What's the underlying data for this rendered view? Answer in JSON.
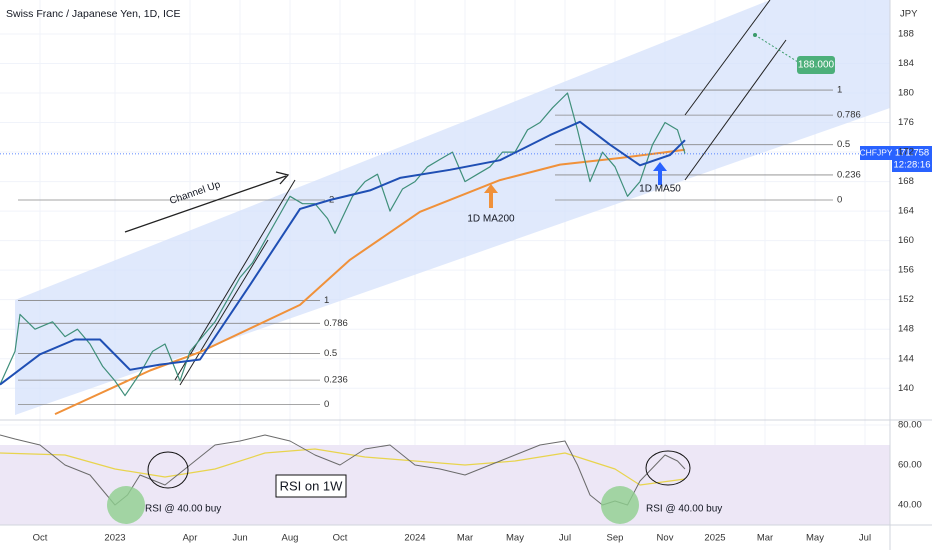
{
  "chart_data": {
    "type": "line",
    "title": "Swiss Franc / Japanese Yen, 1D, ICE",
    "currency": "JPY",
    "ticker": "CHFJPY",
    "last_price": 171.758,
    "countdown": "12:28:16",
    "xlim": [
      -0.6,
      35
    ],
    "xticks": [
      {
        "value": 1,
        "label": "Oct"
      },
      {
        "value": 4,
        "label": "2023"
      },
      {
        "value": 7,
        "label": "Apr"
      },
      {
        "value": 9,
        "label": "Jun"
      },
      {
        "value": 11,
        "label": "Aug"
      },
      {
        "value": 13,
        "label": "Oct"
      },
      {
        "value": 16,
        "label": "2024"
      },
      {
        "value": 18,
        "label": "Mar"
      },
      {
        "value": 20,
        "label": "May"
      },
      {
        "value": 22,
        "label": "Jul"
      },
      {
        "value": 24,
        "label": "Sep"
      },
      {
        "value": 26,
        "label": "Nov"
      },
      {
        "value": 28,
        "label": "2025"
      },
      {
        "value": 30,
        "label": "Mar"
      },
      {
        "value": 32,
        "label": "May"
      },
      {
        "value": 34,
        "label": "Jul"
      }
    ],
    "ylim": [
      135.7,
      192.6
    ],
    "yticks": [
      140,
      144,
      148,
      152,
      156,
      160,
      164,
      168,
      172,
      176,
      180,
      184,
      188
    ],
    "grid": true,
    "series": [
      {
        "name": "CHFJPY",
        "color": "#3f8f7a",
        "x": [
          -0.6,
          0,
          0.2,
          0.8,
          1.5,
          2,
          2.5,
          3,
          3.5,
          4,
          4.4,
          5,
          5.5,
          6,
          6.6,
          7,
          7.5,
          8,
          8.5,
          9,
          9.5,
          10,
          10.5,
          11,
          11.5,
          12,
          12.5,
          12.8,
          13.5,
          14,
          14.5,
          15,
          15.5,
          16,
          16.5,
          17,
          17.5,
          18,
          18.5,
          19,
          19.5,
          20,
          20.5,
          21,
          21.5,
          22.1,
          22.5,
          23,
          23.5,
          24,
          24.5,
          25,
          25.5,
          26,
          26.5,
          26.8
        ],
        "values": [
          140.5,
          145,
          150,
          148,
          149,
          147,
          148,
          146,
          143,
          141,
          139,
          142,
          145,
          146,
          141,
          145,
          147,
          149,
          152,
          155,
          157,
          160,
          163,
          166,
          165,
          165,
          163,
          161,
          166,
          168,
          169,
          164,
          167,
          168,
          170,
          171,
          172,
          168,
          169,
          170,
          172,
          172,
          175,
          176,
          178,
          180,
          175,
          168,
          172,
          170,
          166,
          168,
          173,
          176,
          175,
          171.8
        ]
      },
      {
        "name": "1D MA50",
        "color": "#1f4fb4",
        "x": [
          -0.6,
          1,
          2.4,
          3.4,
          4.6,
          5.8,
          7.4,
          9.4,
          11.4,
          12.6,
          14.2,
          15.4,
          17.4,
          19.4,
          21.4,
          22.6,
          23.8,
          25,
          26.2,
          26.8
        ],
        "values": [
          140.5,
          144.6,
          146.6,
          146.6,
          142.5,
          143.2,
          143.9,
          154,
          164.3,
          165.5,
          166.8,
          168.5,
          169.6,
          170.9,
          174.3,
          176.1,
          173,
          170.2,
          171.6,
          173.6
        ]
      },
      {
        "name": "1D MA200",
        "color": "#f0913a",
        "x": [
          1.6,
          5.4,
          7.4,
          11.4,
          13.4,
          16.2,
          19.4,
          21.8,
          24.2,
          26.8
        ],
        "values": [
          136.5,
          142.4,
          144.9,
          151.3,
          157.4,
          163.9,
          168.2,
          170.3,
          171.2,
          172.3
        ]
      }
    ],
    "fib_left": [
      {
        "level": 2,
        "price": 165.5
      },
      {
        "level": 1,
        "price": 151.9
      },
      {
        "level": 0.786,
        "price": 148.8
      },
      {
        "level": 0.5,
        "price": 144.7
      },
      {
        "level": 0.236,
        "price": 141.1
      },
      {
        "level": 0,
        "price": 137.8
      }
    ],
    "fib_right": [
      {
        "level": 1,
        "price": 180.4
      },
      {
        "level": 0.786,
        "price": 177
      },
      {
        "level": 0.5,
        "price": 173
      },
      {
        "level": 0.236,
        "price": 168.9
      },
      {
        "level": 0,
        "price": 165.5
      }
    ],
    "target": {
      "value": 188,
      "label": "188.000"
    },
    "annotations": {
      "channel": "Channel Up",
      "rsi_note": "RSI on 1W",
      "buy_1": "RSI @ 40.00 buy",
      "buy_2": "RSI @ 40.00 buy"
    },
    "rsi": {
      "ylim": [
        30,
        82.5
      ],
      "yticks": [
        {
          "value": 40,
          "label": "40.00"
        },
        {
          "value": 60,
          "label": "60.00"
        },
        {
          "value": 80,
          "label": "80.00"
        }
      ],
      "series": [
        {
          "name": "RSI on 1W",
          "color": "#6b6b6b",
          "x": [
            -0.6,
            0,
            1,
            2,
            3,
            4,
            4.5,
            5,
            6,
            7,
            8,
            9,
            10,
            11,
            12,
            13,
            14,
            15,
            16,
            17,
            18,
            19,
            20,
            21,
            22,
            22.5,
            23,
            23.5,
            24,
            24.5,
            25,
            26,
            26.5,
            26.8
          ],
          "values": [
            75,
            73,
            70,
            60,
            55,
            40,
            45,
            55,
            50,
            60,
            70,
            72,
            75,
            72,
            65,
            60,
            68,
            70,
            60,
            58,
            55,
            60,
            65,
            70,
            72,
            60,
            45,
            40,
            42,
            40,
            52,
            65,
            62,
            58
          ]
        },
        {
          "color": "#e8d44d",
          "x": [
            -0.6,
            2,
            4,
            6,
            8,
            10,
            12,
            14,
            16,
            18,
            20,
            22,
            24,
            25,
            26.8
          ],
          "values": [
            66,
            65,
            58,
            54,
            58,
            66,
            68,
            64,
            62,
            60,
            62,
            66,
            58,
            50,
            53
          ]
        }
      ]
    }
  }
}
